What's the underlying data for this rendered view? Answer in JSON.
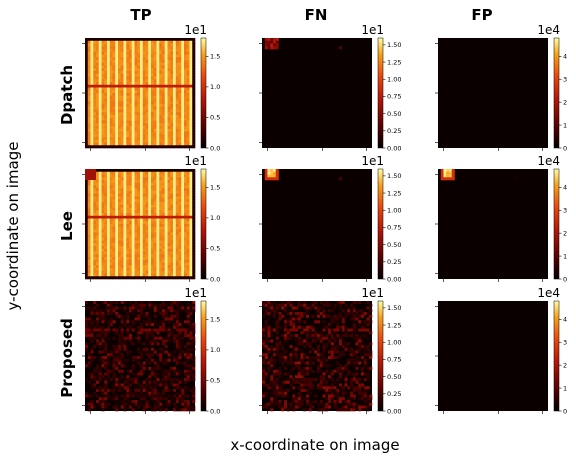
{
  "xlabel": "x-coordinate on image",
  "ylabel": "y-coordinate on image",
  "columns": [
    "TP",
    "FN",
    "FP"
  ],
  "rows": [
    "Dpatch",
    "Lee",
    "Proposed"
  ],
  "colormap": [
    "#000000",
    "#5a0000",
    "#b5180a",
    "#e8480b",
    "#f7a01a",
    "#ffffa0"
  ],
  "panel_bg": "#0a0000",
  "chart_data": [
    {
      "type": "heatmap",
      "column": "TP",
      "row": "Dpatch",
      "scale": "1e1",
      "colorbar_ticks": [
        "0.0",
        "0.5",
        "1.0",
        "1.5"
      ],
      "vmin": 0,
      "vmax": 1.8,
      "pattern": "vertical-stripes-high",
      "description_values": {
        "typical": 1.4,
        "peak": 1.8
      }
    },
    {
      "type": "heatmap",
      "column": "FN",
      "row": "Dpatch",
      "scale": "1e1",
      "colorbar_ticks": [
        "0.00",
        "0.25",
        "0.50",
        "0.75",
        "1.00",
        "1.25",
        "1.50"
      ],
      "vmin": 0,
      "vmax": 1.6,
      "pattern": "top-left-spot",
      "description_values": {
        "typical": 0.0,
        "peak": 0.6
      }
    },
    {
      "type": "heatmap",
      "column": "FP",
      "row": "Dpatch",
      "scale": "1e4",
      "colorbar_ticks": [
        "0",
        "1",
        "2",
        "3",
        "4"
      ],
      "vmin": 0,
      "vmax": 4.8,
      "pattern": "empty",
      "description_values": {
        "typical": 0.0,
        "peak": 0.0
      }
    },
    {
      "type": "heatmap",
      "column": "TP",
      "row": "Lee",
      "scale": "1e1",
      "colorbar_ticks": [
        "0.0",
        "0.5",
        "1.0",
        "1.5"
      ],
      "vmin": 0,
      "vmax": 1.8,
      "pattern": "vertical-stripes-high",
      "description_values": {
        "typical": 1.4,
        "peak": 1.8
      }
    },
    {
      "type": "heatmap",
      "column": "FN",
      "row": "Lee",
      "scale": "1e1",
      "colorbar_ticks": [
        "0.00",
        "0.25",
        "0.50",
        "0.75",
        "1.00",
        "1.25",
        "1.50"
      ],
      "vmin": 0,
      "vmax": 1.6,
      "pattern": "top-left-hot-spot",
      "description_values": {
        "typical": 0.0,
        "peak": 1.6
      }
    },
    {
      "type": "heatmap",
      "column": "FP",
      "row": "Lee",
      "scale": "1e4",
      "colorbar_ticks": [
        "0",
        "1",
        "2",
        "3",
        "4"
      ],
      "vmin": 0,
      "vmax": 4.8,
      "pattern": "top-left-hot-spot",
      "description_values": {
        "typical": 0.0,
        "peak": 4.8
      }
    },
    {
      "type": "heatmap",
      "column": "TP",
      "row": "Proposed",
      "scale": "1e1",
      "colorbar_ticks": [
        "0.0",
        "0.5",
        "1.0",
        "1.5"
      ],
      "vmin": 0,
      "vmax": 1.8,
      "pattern": "sparse-noise",
      "description_values": {
        "typical": 0.2,
        "peak": 0.5
      }
    },
    {
      "type": "heatmap",
      "column": "FN",
      "row": "Proposed",
      "scale": "1e1",
      "colorbar_ticks": [
        "0.00",
        "0.25",
        "0.50",
        "0.75",
        "1.00",
        "1.25",
        "1.50"
      ],
      "vmin": 0,
      "vmax": 1.6,
      "pattern": "sparse-noise",
      "description_values": {
        "typical": 0.2,
        "peak": 0.5
      }
    },
    {
      "type": "heatmap",
      "column": "FP",
      "row": "Proposed",
      "scale": "1e4",
      "colorbar_ticks": [
        "0",
        "1",
        "2",
        "3",
        "4"
      ],
      "vmin": 0,
      "vmax": 4.8,
      "pattern": "empty",
      "description_values": {
        "typical": 0.0,
        "peak": 0.0
      }
    }
  ]
}
